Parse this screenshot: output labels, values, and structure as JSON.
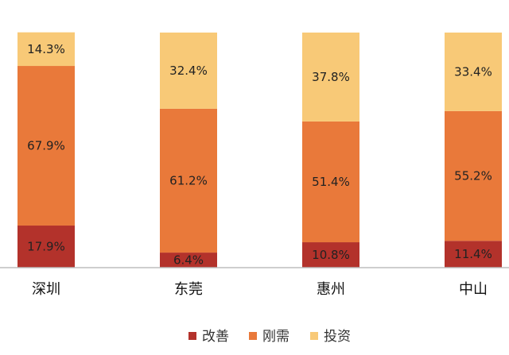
{
  "chart_data": {
    "type": "bar",
    "stacked": true,
    "percent": true,
    "categories": [
      "深圳",
      "东莞",
      "惠州",
      "中山"
    ],
    "series": [
      {
        "name": "改善",
        "values": [
          17.9,
          6.4,
          10.8,
          11.4
        ],
        "labels": [
          "17.9%",
          "6.4%",
          "10.8%",
          "11.4%"
        ],
        "color": "#b3322b"
      },
      {
        "name": "刚需",
        "values": [
          67.9,
          61.2,
          51.4,
          55.2
        ],
        "labels": [
          "67.9%",
          "61.2%",
          "51.4%",
          "55.2%"
        ],
        "color": "#e9793a"
      },
      {
        "name": "投资",
        "values": [
          14.3,
          32.4,
          37.8,
          33.4
        ],
        "labels": [
          "14.3%",
          "32.4%",
          "37.8%",
          "33.4%"
        ],
        "color": "#f8c977"
      }
    ],
    "ylim": [
      0,
      100
    ],
    "grid": false,
    "legend": "bottom",
    "title": "",
    "xlabel": "",
    "ylabel": ""
  }
}
